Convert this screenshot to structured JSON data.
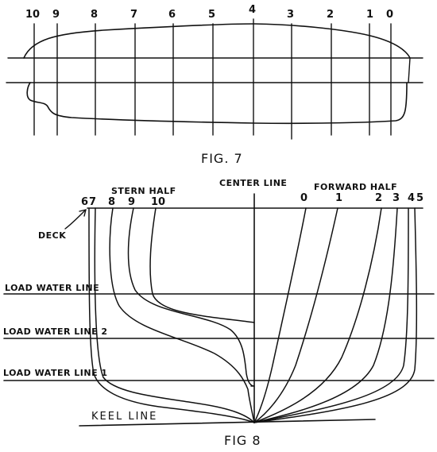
{
  "fig7": {
    "caption": "FIG. 7",
    "station_labels": [
      "10",
      "9",
      "8",
      "7",
      "6",
      "5",
      "4",
      "3",
      "2",
      "1",
      "0"
    ]
  },
  "fig8": {
    "caption": "FIG 8",
    "stern_half": "STERN HALF",
    "center_line": "CENTER LINE",
    "forward_half": "FORWARD HALF",
    "deck": "DECK",
    "load_water_line": "LOAD WATER LINE",
    "load_water_line_2": "LOAD WATER LINE 2",
    "load_water_line_1": "LOAD WATER LINE 1",
    "keel_line": "KEEL LINE",
    "stern_labels": [
      "6",
      "7",
      "8",
      "9",
      "10"
    ],
    "forward_labels": [
      "0",
      "1",
      "2",
      "3",
      "4",
      "5"
    ]
  }
}
